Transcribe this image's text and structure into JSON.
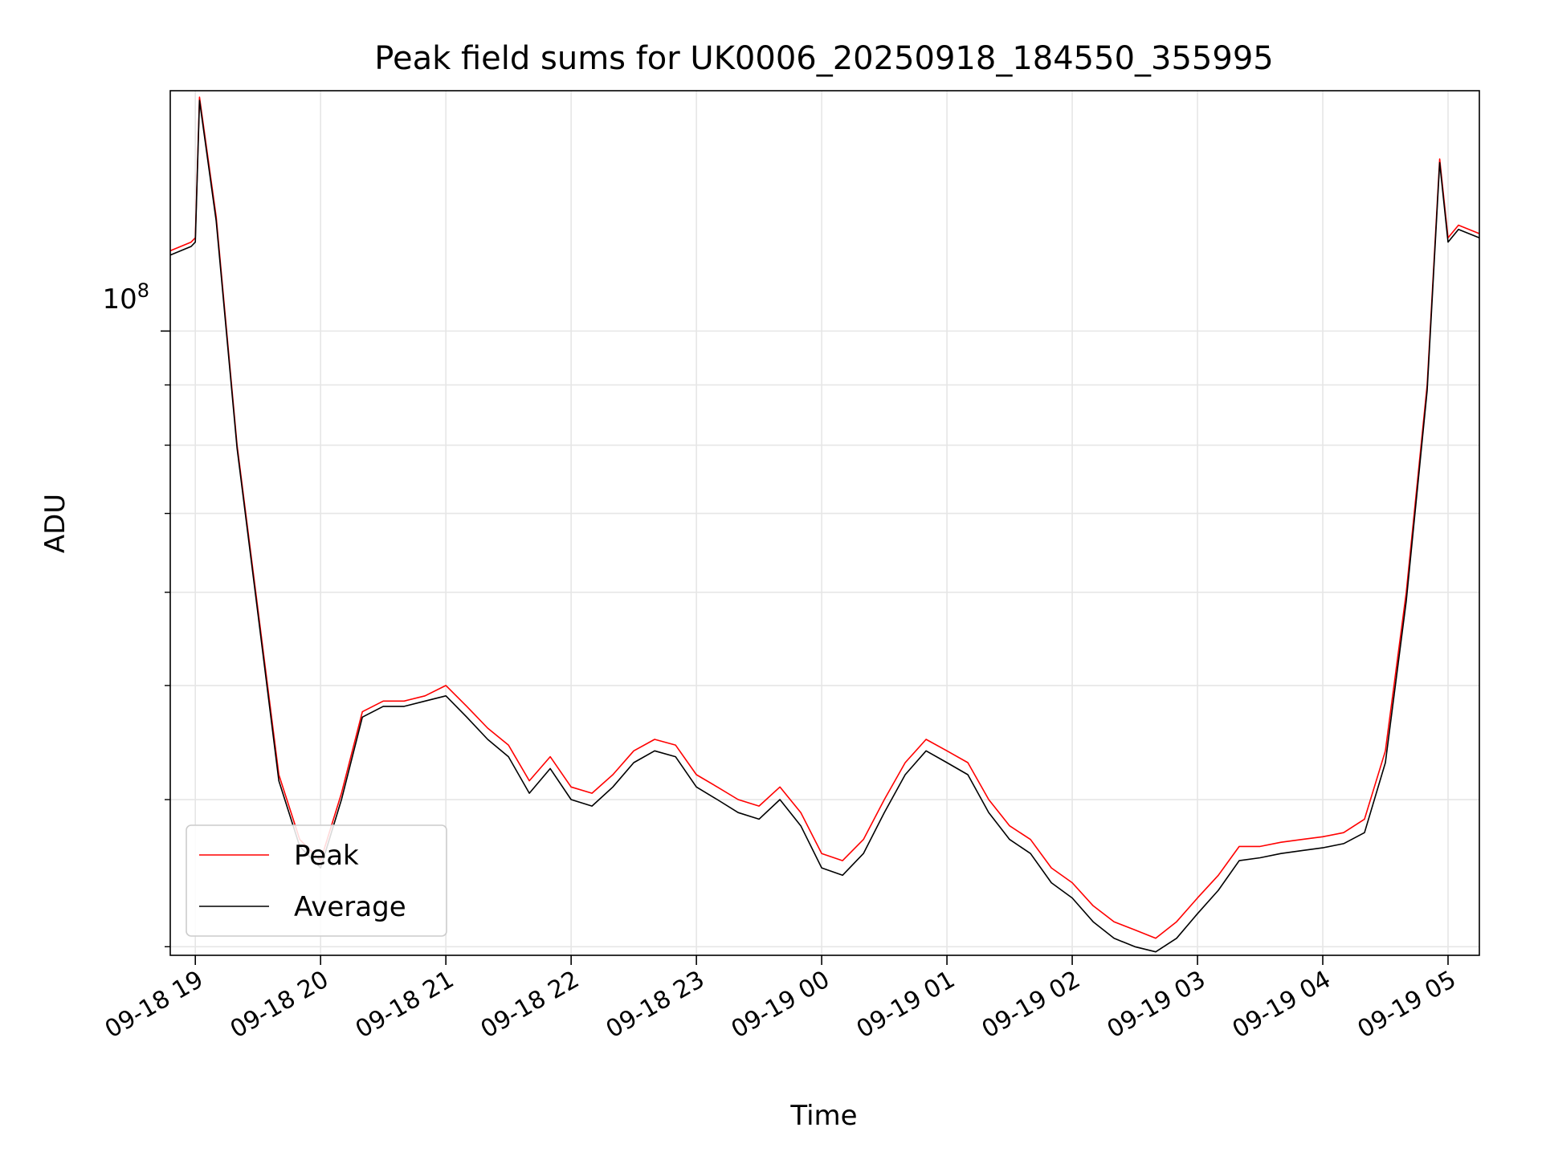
{
  "chart_data": {
    "type": "line",
    "title": "Peak field sums for UK0006_20250918_184550_355995",
    "xlabel": "Time",
    "ylabel": "ADU",
    "y_scale": "log",
    "y_major_tick_label": {
      "base": "10",
      "exponent": "8"
    },
    "y_major_tick_value": 100000000,
    "x_range": [
      "2025-09-18T18:48",
      "2025-09-19T05:15"
    ],
    "y_range": [
      29500000,
      160000000
    ],
    "x_ticks": [
      "09-18 19",
      "09-18 20",
      "09-18 21",
      "09-18 22",
      "09-18 23",
      "09-19 00",
      "09-19 01",
      "09-19 02",
      "09-19 03",
      "09-19 04",
      "09-19 05"
    ],
    "grid": true,
    "legend_location": "lower-left",
    "series": [
      {
        "name": "Peak",
        "color": "#ff0000",
        "points": [
          [
            "18:48",
            117000000
          ],
          [
            "18:58",
            119000000
          ],
          [
            "19:00",
            120000000
          ],
          [
            "19:02",
            158000000
          ],
          [
            "19:10",
            125000000
          ],
          [
            "19:20",
            80000000
          ],
          [
            "19:30",
            58000000
          ],
          [
            "19:40",
            42000000
          ],
          [
            "19:50",
            37000000
          ],
          [
            "20:00",
            35500000
          ],
          [
            "20:10",
            40500000
          ],
          [
            "20:20",
            47500000
          ],
          [
            "20:30",
            48500000
          ],
          [
            "20:40",
            48500000
          ],
          [
            "20:50",
            49000000
          ],
          [
            "21:00",
            50000000
          ],
          [
            "21:10",
            48000000
          ],
          [
            "21:20",
            46000000
          ],
          [
            "21:30",
            44500000
          ],
          [
            "21:40",
            41500000
          ],
          [
            "21:50",
            43500000
          ],
          [
            "22:00",
            41000000
          ],
          [
            "22:10",
            40500000
          ],
          [
            "22:20",
            42000000
          ],
          [
            "22:30",
            44000000
          ],
          [
            "22:40",
            45000000
          ],
          [
            "22:50",
            44500000
          ],
          [
            "23:00",
            42000000
          ],
          [
            "23:10",
            41000000
          ],
          [
            "23:20",
            40000000
          ],
          [
            "23:30",
            39500000
          ],
          [
            "23:40",
            41000000
          ],
          [
            "23:50",
            39000000
          ],
          [
            "00:00",
            36000000
          ],
          [
            "00:10",
            35500000
          ],
          [
            "00:20",
            37000000
          ],
          [
            "00:30",
            40000000
          ],
          [
            "00:40",
            43000000
          ],
          [
            "00:50",
            45000000
          ],
          [
            "01:00",
            44000000
          ],
          [
            "01:10",
            43000000
          ],
          [
            "01:20",
            40000000
          ],
          [
            "01:30",
            38000000
          ],
          [
            "01:40",
            37000000
          ],
          [
            "01:50",
            35000000
          ],
          [
            "02:00",
            34000000
          ],
          [
            "02:10",
            32500000
          ],
          [
            "02:20",
            31500000
          ],
          [
            "02:30",
            31000000
          ],
          [
            "02:40",
            30500000
          ],
          [
            "02:50",
            31500000
          ],
          [
            "03:00",
            33000000
          ],
          [
            "03:10",
            34500000
          ],
          [
            "03:20",
            36500000
          ],
          [
            "03:30",
            36500000
          ],
          [
            "03:40",
            36800000
          ],
          [
            "03:50",
            37000000
          ],
          [
            "04:00",
            37200000
          ],
          [
            "04:10",
            37500000
          ],
          [
            "04:20",
            38500000
          ],
          [
            "04:30",
            44000000
          ],
          [
            "04:40",
            60000000
          ],
          [
            "04:50",
            90000000
          ],
          [
            "04:56",
            140000000
          ],
          [
            "05:00",
            120000000
          ],
          [
            "05:05",
            123000000
          ],
          [
            "05:10",
            122000000
          ],
          [
            "05:15",
            121000000
          ]
        ]
      },
      {
        "name": "Average",
        "color": "#000000",
        "points": [
          [
            "18:48",
            116000000
          ],
          [
            "18:58",
            118000000
          ],
          [
            "19:00",
            119000000
          ],
          [
            "19:02",
            157000000
          ],
          [
            "19:10",
            124000000
          ],
          [
            "19:20",
            79500000
          ],
          [
            "19:30",
            57500000
          ],
          [
            "19:40",
            41500000
          ],
          [
            "19:50",
            36500000
          ],
          [
            "20:00",
            35000000
          ],
          [
            "20:10",
            40000000
          ],
          [
            "20:20",
            47000000
          ],
          [
            "20:30",
            48000000
          ],
          [
            "20:40",
            48000000
          ],
          [
            "20:50",
            48500000
          ],
          [
            "21:00",
            49000000
          ],
          [
            "21:10",
            47000000
          ],
          [
            "21:20",
            45000000
          ],
          [
            "21:30",
            43500000
          ],
          [
            "21:40",
            40500000
          ],
          [
            "21:50",
            42500000
          ],
          [
            "22:00",
            40000000
          ],
          [
            "22:10",
            39500000
          ],
          [
            "22:20",
            41000000
          ],
          [
            "22:30",
            43000000
          ],
          [
            "22:40",
            44000000
          ],
          [
            "22:50",
            43500000
          ],
          [
            "23:00",
            41000000
          ],
          [
            "23:10",
            40000000
          ],
          [
            "23:20",
            39000000
          ],
          [
            "23:30",
            38500000
          ],
          [
            "23:40",
            40000000
          ],
          [
            "23:50",
            38000000
          ],
          [
            "00:00",
            35000000
          ],
          [
            "00:10",
            34500000
          ],
          [
            "00:20",
            36000000
          ],
          [
            "00:30",
            39000000
          ],
          [
            "00:40",
            42000000
          ],
          [
            "00:50",
            44000000
          ],
          [
            "01:00",
            43000000
          ],
          [
            "01:10",
            42000000
          ],
          [
            "01:20",
            39000000
          ],
          [
            "01:30",
            37000000
          ],
          [
            "01:40",
            36000000
          ],
          [
            "01:50",
            34000000
          ],
          [
            "02:00",
            33000000
          ],
          [
            "02:10",
            31500000
          ],
          [
            "02:20",
            30500000
          ],
          [
            "02:30",
            30000000
          ],
          [
            "02:40",
            29700000
          ],
          [
            "02:50",
            30500000
          ],
          [
            "03:00",
            32000000
          ],
          [
            "03:10",
            33500000
          ],
          [
            "03:20",
            35500000
          ],
          [
            "03:30",
            35700000
          ],
          [
            "03:40",
            36000000
          ],
          [
            "03:50",
            36200000
          ],
          [
            "04:00",
            36400000
          ],
          [
            "04:10",
            36700000
          ],
          [
            "04:20",
            37500000
          ],
          [
            "04:30",
            43000000
          ],
          [
            "04:40",
            59000000
          ],
          [
            "04:50",
            89000000
          ],
          [
            "04:56",
            139000000
          ],
          [
            "05:00",
            119000000
          ],
          [
            "05:05",
            122000000
          ],
          [
            "05:10",
            121000000
          ],
          [
            "05:15",
            120000000
          ]
        ]
      }
    ]
  }
}
